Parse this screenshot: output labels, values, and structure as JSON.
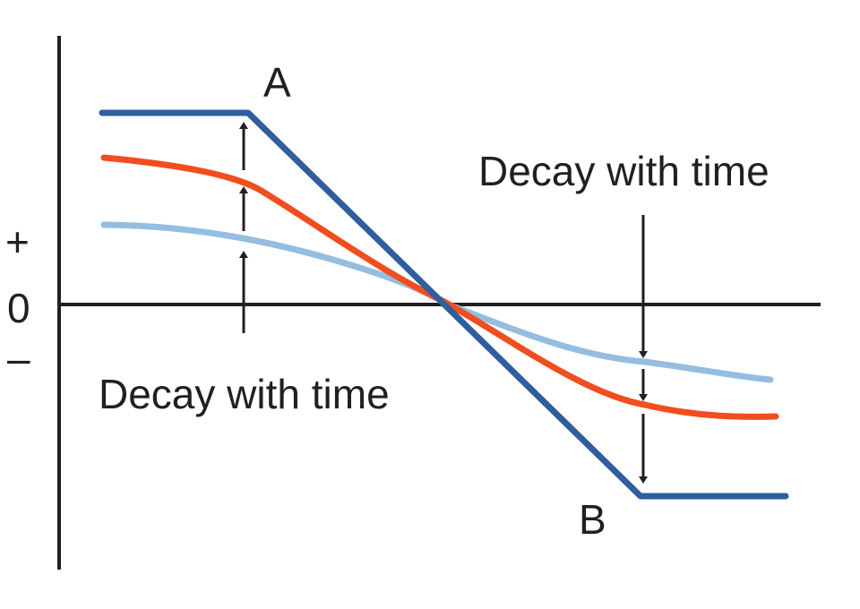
{
  "labels": {
    "point_a": "A",
    "point_b": "B",
    "decay_upper": "Decay with time",
    "decay_lower": "Decay with time",
    "plus": "+",
    "zero": "0",
    "minus": "–"
  },
  "colors": {
    "axis": "#231f20",
    "curve_initial": "#2e5e9e",
    "curve_mid": "#f04e1e",
    "curve_late": "#94bde0",
    "text": "#231f20"
  }
}
